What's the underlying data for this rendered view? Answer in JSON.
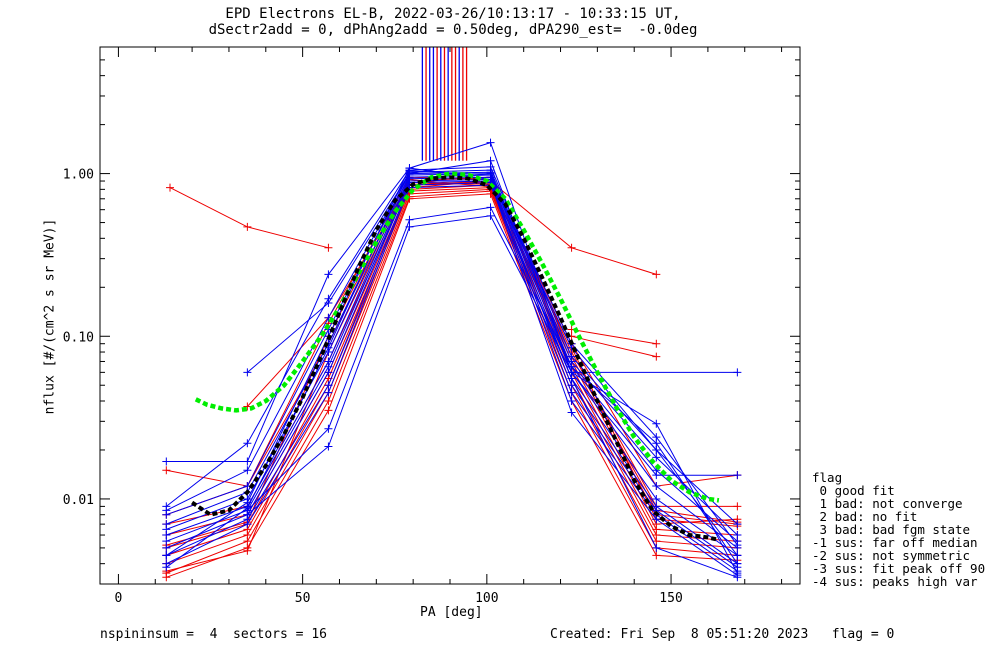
{
  "title_line1": "EPD Electrons EL-B, 2022-03-26/10:13:17 - 10:33:15 UT,",
  "title_line2": "dSectr2add = 0, dPhAng2add = 0.50deg, dPA290_est=  -0.0deg",
  "footer": {
    "left": "nspininsum =  4  sectors = 16",
    "right": "Created: Fri Sep  8 05:51:20 2023   flag = 0"
  },
  "legend": {
    "title": "flag",
    "items": [
      " 0 good fit",
      " 1 bad: not converge",
      " 2 bad: no fit",
      " 3 bad: bad fgm state",
      "-1 sus: far off median",
      "-2 sus: not symmetric",
      "-3 sus: fit peak off 90",
      "-4 sus: peaks high var"
    ]
  },
  "colors": {
    "red": "#ee0000",
    "blue": "#0000ee",
    "green": "#00ee00",
    "black": "#000000"
  },
  "chart_data": {
    "type": "line",
    "xlabel": "PA [deg]",
    "ylabel": "nflux [#/(cm^2 s sr MeV)]",
    "xlim": [
      -5,
      185
    ],
    "ylim": [
      0.003,
      6.0
    ],
    "yscale": "log",
    "xticks": [
      0,
      50,
      100,
      150
    ],
    "xtick_labels": [
      "0",
      "50",
      "100",
      "150"
    ],
    "yticks": [
      0.01,
      0.1,
      1.0
    ],
    "ytick_labels": [
      "0.01",
      "0.10",
      "1.00"
    ],
    "series": [
      {
        "color": "red",
        "x": [
          14,
          35,
          57
        ],
        "values": [
          0.82,
          0.47,
          0.35
        ]
      },
      {
        "color": "red",
        "x": [
          35,
          57,
          79,
          101,
          123,
          146
        ],
        "values": [
          0.037,
          0.13,
          0.85,
          0.9,
          0.35,
          0.24
        ]
      },
      {
        "color": "red",
        "x": [
          123,
          146
        ],
        "values": [
          0.11,
          0.09
        ]
      },
      {
        "color": "red",
        "x": [
          123,
          146
        ],
        "values": [
          0.1,
          0.075
        ]
      },
      {
        "color": "red",
        "x": [
          13,
          35,
          57,
          79,
          101,
          123,
          146,
          168
        ],
        "values": [
          0.015,
          0.012,
          0.12,
          0.95,
          0.92,
          0.09,
          0.012,
          0.014
        ]
      },
      {
        "color": "red",
        "x": [
          13,
          35,
          57,
          79,
          101,
          123,
          146,
          168
        ],
        "values": [
          0.008,
          0.012,
          0.09,
          0.9,
          0.95,
          0.08,
          0.009,
          0.009
        ]
      },
      {
        "color": "red",
        "x": [
          13,
          35,
          57,
          79,
          101,
          123,
          146,
          168
        ],
        "values": [
          0.007,
          0.009,
          0.07,
          0.85,
          0.88,
          0.07,
          0.008,
          0.007
        ]
      },
      {
        "color": "red",
        "x": [
          13,
          35,
          57,
          79,
          101,
          123,
          146,
          168
        ],
        "values": [
          0.006,
          0.008,
          0.06,
          0.82,
          0.9,
          0.065,
          0.007,
          0.0075
        ]
      },
      {
        "color": "red",
        "x": [
          13,
          35,
          57,
          79,
          101,
          123,
          146,
          168
        ],
        "values": [
          0.005,
          0.007,
          0.055,
          0.8,
          0.85,
          0.06,
          0.0065,
          0.006
        ]
      },
      {
        "color": "red",
        "x": [
          13,
          35,
          57,
          79,
          101,
          123,
          146,
          168
        ],
        "values": [
          0.0045,
          0.0065,
          0.05,
          0.78,
          0.82,
          0.055,
          0.006,
          0.0055
        ]
      },
      {
        "color": "red",
        "x": [
          13,
          35,
          57,
          79,
          101,
          123,
          146,
          168
        ],
        "values": [
          0.004,
          0.006,
          0.045,
          0.75,
          0.8,
          0.05,
          0.0055,
          0.005
        ]
      },
      {
        "color": "red",
        "x": [
          13,
          35,
          57,
          79,
          101,
          123,
          146,
          168
        ],
        "values": [
          0.0035,
          0.0055,
          0.04,
          0.72,
          0.78,
          0.045,
          0.005,
          0.0045
        ]
      },
      {
        "color": "red",
        "x": [
          13,
          35,
          57,
          79,
          101,
          123,
          146,
          168
        ],
        "values": [
          0.0033,
          0.005,
          0.035,
          0.7,
          0.75,
          0.04,
          0.0045,
          0.0042
        ]
      },
      {
        "color": "red",
        "x": [
          13,
          35,
          57,
          79,
          101,
          123,
          146,
          168
        ],
        "values": [
          0.0036,
          0.0048,
          0.08,
          0.88,
          0.86,
          0.075,
          0.0085,
          0.0072
        ]
      },
      {
        "color": "red",
        "x": [
          13,
          35,
          57,
          79,
          101,
          123,
          146,
          168
        ],
        "values": [
          0.0052,
          0.0072,
          0.1,
          0.92,
          0.83,
          0.085,
          0.0075,
          0.0068
        ]
      },
      {
        "color": "blue",
        "x": [
          13,
          35,
          57,
          79,
          101,
          123,
          146,
          168
        ],
        "values": [
          0.017,
          0.017,
          0.24,
          1.08,
          1.55,
          0.06,
          0.014,
          0.014
        ]
      },
      {
        "color": "blue",
        "x": [
          35,
          57,
          79,
          101,
          123,
          168
        ],
        "values": [
          0.06,
          0.16,
          1.0,
          1.2,
          0.06,
          0.06
        ]
      },
      {
        "color": "blue",
        "x": [
          13,
          35,
          57,
          79,
          101,
          123,
          146,
          168
        ],
        "values": [
          0.009,
          0.022,
          0.17,
          1.05,
          1.1,
          0.075,
          0.02,
          0.007
        ]
      },
      {
        "color": "blue",
        "x": [
          13,
          35,
          57,
          79,
          101,
          123,
          146,
          168
        ],
        "values": [
          0.0085,
          0.015,
          0.13,
          1.02,
          1.05,
          0.07,
          0.018,
          0.006
        ]
      },
      {
        "color": "blue",
        "x": [
          13,
          35,
          57,
          79,
          101,
          123,
          146,
          168
        ],
        "values": [
          0.008,
          0.012,
          0.11,
          1.0,
          1.02,
          0.065,
          0.015,
          0.0055
        ]
      },
      {
        "color": "blue",
        "x": [
          13,
          35,
          57,
          79,
          101,
          123,
          146,
          168
        ],
        "values": [
          0.007,
          0.011,
          0.09,
          0.98,
          1.0,
          0.06,
          0.012,
          0.005
        ]
      },
      {
        "color": "blue",
        "x": [
          13,
          35,
          57,
          79,
          101,
          123,
          146,
          168
        ],
        "values": [
          0.0065,
          0.01,
          0.08,
          0.95,
          0.98,
          0.055,
          0.01,
          0.0045
        ]
      },
      {
        "color": "blue",
        "x": [
          13,
          35,
          57,
          79,
          101,
          123,
          146,
          168
        ],
        "values": [
          0.006,
          0.009,
          0.07,
          0.93,
          0.95,
          0.05,
          0.009,
          0.004
        ]
      },
      {
        "color": "blue",
        "x": [
          13,
          35,
          57,
          79,
          101,
          123,
          146,
          168
        ],
        "values": [
          0.0055,
          0.0085,
          0.065,
          0.9,
          0.92,
          0.045,
          0.0085,
          0.0038
        ]
      },
      {
        "color": "blue",
        "x": [
          13,
          35,
          57,
          79,
          101,
          123,
          146,
          168
        ],
        "values": [
          0.005,
          0.008,
          0.06,
          0.88,
          0.9,
          0.04,
          0.008,
          0.0036
        ]
      },
      {
        "color": "blue",
        "x": [
          13,
          35,
          57,
          79,
          101,
          123,
          146,
          168
        ],
        "values": [
          0.0045,
          0.0075,
          0.05,
          0.85,
          0.88,
          0.034,
          0.0075,
          0.0034
        ]
      },
      {
        "color": "blue",
        "x": [
          13,
          35,
          57,
          79,
          101,
          123,
          146,
          168
        ],
        "values": [
          0.004,
          0.007,
          0.045,
          0.82,
          0.85,
          0.055,
          0.005,
          0.0033
        ]
      },
      {
        "color": "blue",
        "x": [
          35,
          57,
          79,
          101,
          123,
          146,
          168
        ],
        "values": [
          0.0085,
          0.027,
          0.52,
          0.62,
          0.065,
          0.022,
          0.004
        ]
      },
      {
        "color": "blue",
        "x": [
          35,
          57,
          79,
          101,
          123,
          146,
          168
        ],
        "values": [
          0.008,
          0.021,
          0.47,
          0.55,
          0.06,
          0.029,
          0.0035
        ]
      },
      {
        "color": "blue",
        "x": [
          13,
          35,
          57,
          79,
          101,
          123,
          146,
          168
        ],
        "values": [
          0.0045,
          0.0095,
          0.1,
          1.08,
          0.92,
          0.085,
          0.02,
          0.0045
        ]
      },
      {
        "color": "blue",
        "x": [
          13,
          35,
          57,
          79,
          101,
          123,
          146,
          168
        ],
        "values": [
          0.0038,
          0.0088,
          0.085,
          1.04,
          0.98,
          0.09,
          0.024,
          0.0052
        ]
      },
      {
        "color": "green",
        "dashed": true,
        "x": [
          21,
          24,
          28,
          32,
          36,
          40,
          45,
          50,
          55,
          60,
          65,
          70,
          75,
          80,
          85,
          90,
          95,
          100,
          105,
          110,
          115,
          120,
          125,
          130,
          135,
          140,
          145,
          150,
          155,
          160,
          163
        ],
        "values": [
          0.041,
          0.038,
          0.036,
          0.035,
          0.036,
          0.04,
          0.05,
          0.07,
          0.1,
          0.15,
          0.24,
          0.38,
          0.58,
          0.8,
          0.95,
          1.0,
          0.98,
          0.9,
          0.7,
          0.45,
          0.28,
          0.17,
          0.1,
          0.06,
          0.037,
          0.024,
          0.017,
          0.013,
          0.011,
          0.01,
          0.0098
        ]
      },
      {
        "color": "black",
        "dashed": true,
        "x": [
          20,
          25,
          30,
          35,
          40,
          45,
          50,
          55,
          60,
          65,
          70,
          75,
          80,
          85,
          90,
          95,
          100,
          105,
          110,
          115,
          120,
          125,
          130,
          135,
          140,
          145,
          150,
          155,
          160,
          163
        ],
        "values": [
          0.0095,
          0.008,
          0.0085,
          0.011,
          0.016,
          0.025,
          0.042,
          0.075,
          0.14,
          0.26,
          0.45,
          0.68,
          0.86,
          0.93,
          0.95,
          0.93,
          0.85,
          0.65,
          0.4,
          0.23,
          0.13,
          0.072,
          0.04,
          0.023,
          0.013,
          0.0085,
          0.0068,
          0.006,
          0.0058,
          0.0056
        ]
      }
    ],
    "markers": {
      "x": [
        82.5,
        83.5,
        84.5,
        85.5,
        86.5,
        87.5,
        88.5,
        89.5,
        90.5,
        91.5,
        92.5,
        93.5,
        94.5
      ],
      "colors": [
        "blue",
        "red",
        "blue",
        "blue",
        "red",
        "blue",
        "red",
        "blue",
        "red",
        "red",
        "blue",
        "red",
        "red"
      ],
      "y_from": 1.2,
      "y_to": 6.0
    }
  }
}
